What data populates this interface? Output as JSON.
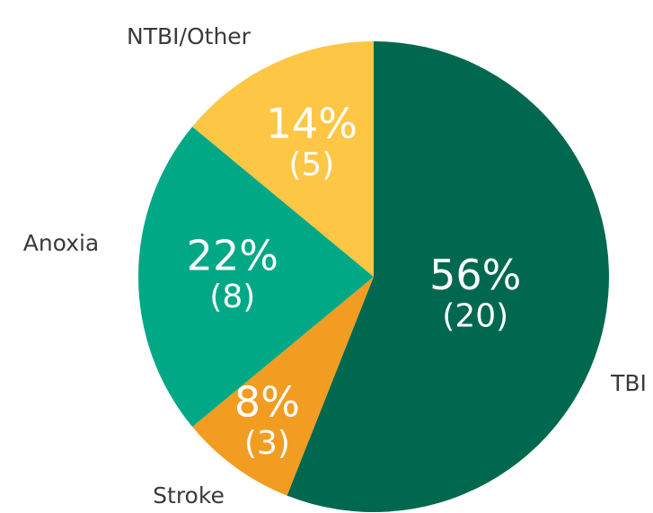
{
  "chart_data": {
    "type": "pie",
    "categories": [
      "TBI",
      "Stroke",
      "Anoxia",
      "NTBI/Other"
    ],
    "values": [
      56,
      8,
      22,
      14
    ],
    "value_labels": [
      "56%",
      "8%",
      "22%",
      "14%"
    ],
    "count_labels": [
      "(20)",
      "(3)",
      "(8)",
      "(5)"
    ],
    "colors": [
      "#00684f",
      "#f39c22",
      "#00a886",
      "#fdc645"
    ]
  }
}
